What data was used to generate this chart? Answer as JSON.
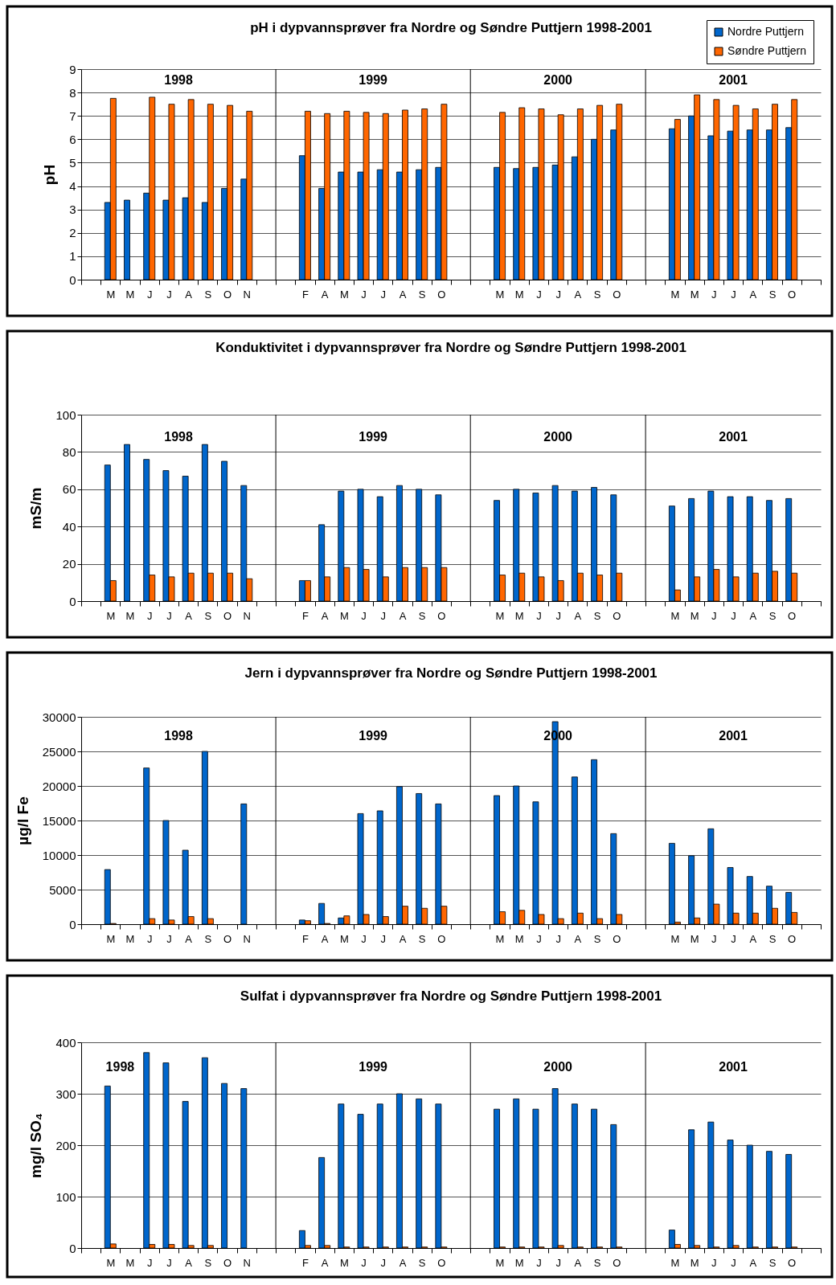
{
  "chart_data": [
    {
      "type": "bar",
      "title": "pH i dypvannsprøver fra Nordre og Søndre Puttjern 1998-2001",
      "ylabel": "pH",
      "categories": [
        null,
        "M",
        "M",
        "J",
        "J",
        "A",
        "S",
        "O",
        "N",
        null,
        null,
        "F",
        "A",
        "M",
        "J",
        "J",
        "A",
        "S",
        "O",
        null,
        null,
        "M",
        "M",
        "J",
        "J",
        "A",
        "S",
        "O",
        null,
        null,
        "M",
        "M",
        "J",
        "J",
        "A",
        "S",
        "O",
        null
      ],
      "series": [
        {
          "name": "Nordre Puttjern",
          "color": "#0066cc",
          "values": [
            null,
            3.3,
            3.4,
            3.7,
            3.4,
            3.5,
            3.3,
            3.9,
            4.3,
            null,
            null,
            5.3,
            3.9,
            4.6,
            4.6,
            4.7,
            4.6,
            4.7,
            4.8,
            null,
            null,
            4.8,
            4.75,
            4.8,
            4.9,
            5.25,
            6.0,
            6.4,
            null,
            null,
            6.45,
            7.0,
            6.15,
            6.35,
            6.4,
            6.4,
            6.5,
            null
          ]
        },
        {
          "name": "Søndre Puttjern",
          "color": "#ff6600",
          "values": [
            null,
            7.75,
            null,
            7.8,
            7.5,
            7.7,
            7.5,
            7.45,
            7.2,
            null,
            null,
            7.2,
            7.1,
            7.2,
            7.15,
            7.1,
            7.25,
            7.3,
            7.5,
            null,
            null,
            7.15,
            7.35,
            7.3,
            7.05,
            7.3,
            7.45,
            7.5,
            null,
            null,
            6.85,
            7.9,
            7.7,
            7.45,
            7.3,
            7.5,
            7.7,
            null
          ]
        }
      ],
      "ylim": [
        0,
        9
      ],
      "yticks": [
        0,
        1,
        2,
        3,
        4,
        5,
        6,
        7,
        8,
        9
      ],
      "grid": "y",
      "legend": "top right",
      "annotations": [
        "1998",
        "1999",
        "2000",
        "2001"
      ]
    },
    {
      "type": "bar",
      "title": "Konduktivitet i dypvannsprøver fra Nordre og Søndre Puttjern 1998-2001",
      "ylabel": "mS/m",
      "categories": [
        null,
        "M",
        "M",
        "J",
        "J",
        "A",
        "S",
        "O",
        "N",
        null,
        null,
        "F",
        "A",
        "M",
        "J",
        "J",
        "A",
        "S",
        "O",
        null,
        null,
        "M",
        "M",
        "J",
        "J",
        "A",
        "S",
        "O",
        null,
        null,
        "M",
        "M",
        "J",
        "J",
        "A",
        "S",
        "O",
        null
      ],
      "series": [
        {
          "name": "Nordre Puttjern",
          "color": "#0066cc",
          "values": [
            null,
            73,
            84,
            76,
            70,
            67,
            84,
            75,
            62,
            null,
            null,
            11,
            41,
            59,
            60,
            56,
            62,
            60,
            57,
            null,
            null,
            54,
            60,
            58,
            62,
            59,
            61,
            57,
            null,
            null,
            51,
            55,
            59,
            56,
            56,
            54,
            55,
            null
          ]
        },
        {
          "name": "Søndre Puttjern",
          "color": "#ff6600",
          "values": [
            null,
            11,
            null,
            14,
            13,
            15,
            15,
            15,
            12,
            null,
            null,
            11,
            13,
            18,
            17,
            13,
            18,
            18,
            18,
            null,
            null,
            14,
            15,
            13,
            11,
            15,
            14,
            15,
            null,
            null,
            6,
            13,
            17,
            13,
            15,
            16,
            15,
            null
          ]
        }
      ],
      "ylim": [
        0,
        100
      ],
      "yticks": [
        0,
        20,
        40,
        60,
        80,
        100
      ],
      "grid": "y",
      "legend": "top right",
      "annotations": [
        "1998",
        "1999",
        "2000",
        "2001"
      ]
    },
    {
      "type": "bar",
      "title": "Jern i dypvannsprøver fra Nordre og Søndre Puttjern 1998-2001",
      "ylabel": "µg/l Fe",
      "categories": [
        null,
        "M",
        "M",
        "J",
        "J",
        "A",
        "S",
        "O",
        "N",
        null,
        null,
        "F",
        "A",
        "M",
        "J",
        "J",
        "A",
        "S",
        "O",
        null,
        null,
        "M",
        "M",
        "J",
        "J",
        "A",
        "S",
        "O",
        null,
        null,
        "M",
        "M",
        "J",
        "J",
        "A",
        "S",
        "O",
        null
      ],
      "series": [
        {
          "name": "Nordre Puttjern",
          "color": "#0066cc",
          "values": [
            null,
            7900,
            null,
            22600,
            15000,
            10700,
            25000,
            null,
            17400,
            null,
            null,
            600,
            3000,
            900,
            16000,
            16400,
            19900,
            18900,
            17400,
            null,
            null,
            18600,
            20000,
            17700,
            29300,
            21300,
            23800,
            13100,
            null,
            null,
            11700,
            9900,
            13800,
            8200,
            6900,
            5500,
            4600,
            null
          ]
        },
        {
          "name": "Søndre Puttjern",
          "color": "#ff6600",
          "values": [
            null,
            100,
            null,
            800,
            600,
            1100,
            800,
            null,
            null,
            null,
            null,
            500,
            100,
            1200,
            1400,
            1100,
            2600,
            2300,
            2600,
            null,
            null,
            1800,
            2000,
            1400,
            800,
            1600,
            800,
            1400,
            null,
            null,
            300,
            900,
            2900,
            1600,
            1600,
            2300,
            1700,
            null
          ]
        }
      ],
      "ylim": [
        0,
        30000
      ],
      "yticks": [
        0,
        5000,
        10000,
        15000,
        20000,
        25000,
        30000
      ],
      "grid": "y",
      "legend": "top right",
      "annotations": [
        "1998",
        "1999",
        "2000",
        "2001"
      ]
    },
    {
      "type": "bar",
      "title": "Sulfat i dypvannsprøver fra Nordre og Søndre Puttjern 1998-2001",
      "ylabel": "mg/l SO₄",
      "categories": [
        null,
        "M",
        "M",
        "J",
        "J",
        "A",
        "S",
        "O",
        "N",
        null,
        null,
        "F",
        "A",
        "M",
        "J",
        "J",
        "A",
        "S",
        "O",
        null,
        null,
        "M",
        "M",
        "J",
        "J",
        "A",
        "S",
        "O",
        null,
        null,
        "M",
        "M",
        "J",
        "J",
        "A",
        "S",
        "O",
        null
      ],
      "series": [
        {
          "name": "Nordre Puttjern",
          "color": "#0066cc",
          "values": [
            null,
            315,
            null,
            380,
            360,
            285,
            370,
            320,
            310,
            null,
            null,
            34,
            176,
            280,
            260,
            280,
            300,
            290,
            280,
            null,
            null,
            270,
            290,
            270,
            310,
            280,
            270,
            240,
            null,
            null,
            35,
            230,
            245,
            210,
            200,
            188,
            182,
            null
          ]
        },
        {
          "name": "Søndre Puttjern",
          "color": "#ff6600",
          "values": [
            null,
            8,
            null,
            7,
            7,
            5,
            5,
            null,
            null,
            null,
            null,
            5,
            5,
            2,
            2,
            2,
            2,
            2,
            2,
            null,
            null,
            2,
            2,
            2,
            5,
            2,
            2,
            2,
            null,
            null,
            7,
            5,
            2,
            5,
            2,
            2,
            2,
            null
          ]
        }
      ],
      "ylim": [
        0,
        400
      ],
      "yticks": [
        0,
        100,
        200,
        300,
        400
      ],
      "grid": "y",
      "legend": "top right",
      "annotations": [
        "1998",
        "1999",
        "2000",
        "2001"
      ]
    }
  ]
}
